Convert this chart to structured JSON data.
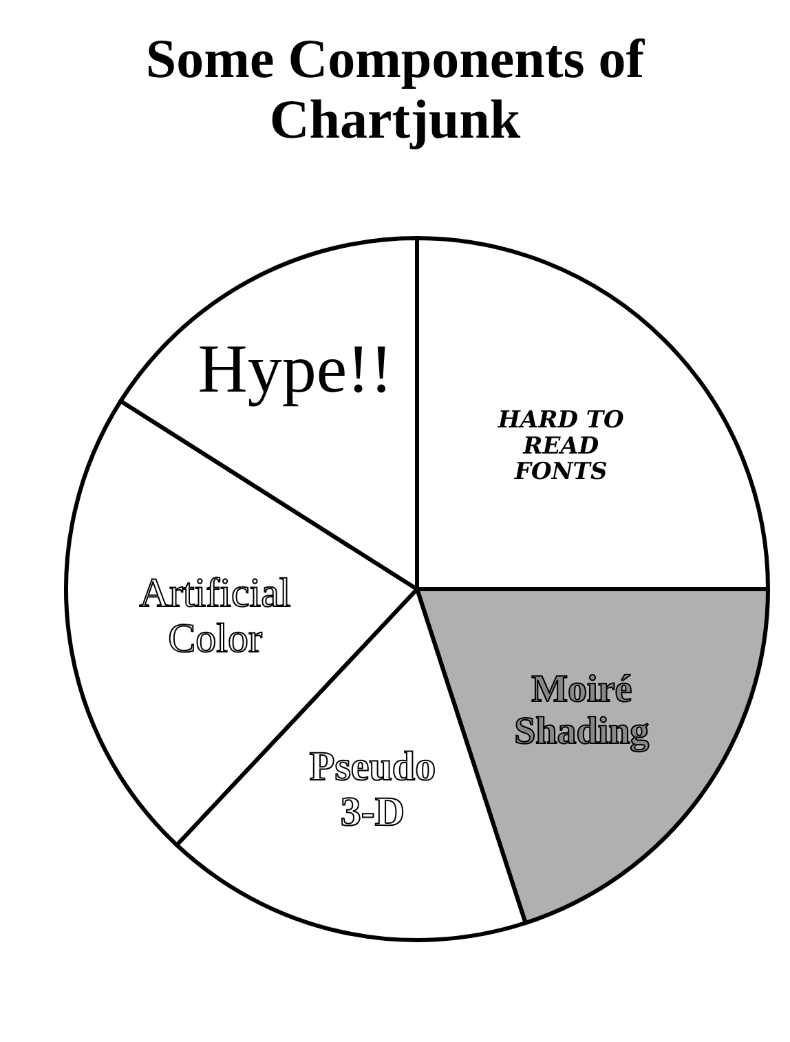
{
  "chart_data": {
    "type": "pie",
    "title": "Some Components of Chartjunk",
    "categories": [
      "HARD TO\nREAD\nFONTS",
      "Moiré\nShading",
      "Pseudo\n3-D",
      "Artificial\nColor",
      "Hype!!"
    ],
    "values": [
      25,
      20,
      17,
      22,
      16
    ],
    "colors": [
      "#ffffff",
      "#b0b0b0",
      "#ffffff",
      "#ffffff",
      "#ffffff"
    ]
  }
}
